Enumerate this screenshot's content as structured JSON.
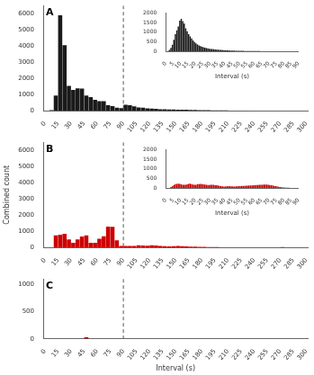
{
  "chart_data": [
    {
      "type": "histogram",
      "title": "A",
      "color": "#1a1a1a",
      "bins": [
        0,
        5,
        10,
        15,
        20,
        25,
        30,
        35,
        40,
        45,
        50,
        55,
        60,
        65,
        70,
        75,
        80,
        85,
        90,
        95,
        100,
        105,
        110,
        115,
        120,
        125,
        130,
        135,
        140,
        145,
        150,
        155,
        160,
        165,
        170,
        175,
        180,
        185,
        190,
        195,
        200,
        205,
        210,
        215,
        220,
        225,
        230,
        235,
        240,
        245,
        250,
        255,
        260,
        265,
        270,
        275,
        280,
        285,
        290,
        295,
        300
      ],
      "values": [
        10,
        50,
        950,
        5900,
        4050,
        1550,
        1300,
        1400,
        1380,
        950,
        850,
        680,
        600,
        600,
        350,
        300,
        200,
        170,
        380,
        350,
        290,
        220,
        200,
        160,
        140,
        130,
        110,
        100,
        90,
        85,
        80,
        75,
        70,
        65,
        55,
        50,
        50,
        45,
        40,
        35,
        35,
        30,
        25,
        20,
        20,
        15,
        15,
        12,
        10,
        8,
        7,
        5,
        5,
        4,
        3,
        3,
        2,
        2,
        1,
        1
      ],
      "xlim": [
        -2,
        302
      ],
      "xticks": [
        0,
        15,
        30,
        45,
        60,
        75,
        90,
        105,
        120,
        135,
        150,
        165,
        180,
        195,
        210,
        225,
        240,
        255,
        270,
        285,
        300
      ],
      "ylim": [
        0,
        6500
      ],
      "yticks": [
        0,
        1000,
        2000,
        3000,
        4000,
        5000,
        6000
      ],
      "grid": false,
      "reference_lines": [
        {
          "x": 90,
          "line_style": "dashed",
          "color": "#555555"
        }
      ],
      "inset": {
        "type": "histogram",
        "xlabel": "Interval (s)",
        "color": "#1a1a1a",
        "bins": [
          0,
          1,
          2,
          3,
          4,
          5,
          6,
          7,
          8,
          9,
          10,
          11,
          12,
          13,
          14,
          15,
          16,
          17,
          18,
          19,
          20,
          21,
          22,
          23,
          24,
          25,
          26,
          27,
          28,
          29,
          30,
          31,
          32,
          33,
          34,
          35,
          36,
          37,
          38,
          39,
          40,
          41,
          42,
          43,
          44,
          45,
          46,
          47,
          48,
          49,
          50,
          51,
          52,
          53,
          54,
          55,
          56,
          57,
          58,
          59,
          60,
          61,
          62,
          63,
          64,
          65,
          66,
          67,
          68,
          69,
          70,
          71,
          72,
          73,
          74,
          75,
          76,
          77,
          78,
          79,
          80,
          81,
          82,
          83,
          84,
          85,
          86,
          87,
          88,
          89,
          90
        ],
        "values": [
          5,
          20,
          80,
          180,
          350,
          600,
          900,
          1100,
          1300,
          1600,
          1700,
          1580,
          1450,
          1200,
          1050,
          900,
          780,
          670,
          570,
          490,
          420,
          360,
          310,
          270,
          240,
          215,
          190,
          170,
          155,
          140,
          128,
          118,
          108,
          100,
          92,
          85,
          78,
          72,
          66,
          61,
          56,
          52,
          48,
          44,
          41,
          38,
          35,
          33,
          31,
          29,
          27,
          25,
          23,
          22,
          20,
          19,
          18,
          17,
          16,
          15,
          14,
          13,
          12,
          11,
          10,
          10,
          9,
          9,
          8,
          8,
          7,
          7,
          6,
          6,
          5,
          5,
          5,
          4,
          4,
          4,
          3,
          3,
          3,
          2,
          2,
          2,
          2,
          1,
          1,
          1
        ],
        "xlim": [
          0,
          90
        ],
        "xticks": [
          0,
          5,
          10,
          15,
          20,
          25,
          30,
          35,
          40,
          45,
          50,
          55,
          60,
          65,
          70,
          75,
          80,
          85,
          90
        ],
        "ylim": [
          0,
          2000
        ],
        "yticks": [
          0,
          500,
          1000,
          1500,
          2000
        ],
        "grid": false
      }
    },
    {
      "type": "histogram",
      "title": "B",
      "ylabel": "Combined count",
      "color": "#cc0000",
      "bins": [
        0,
        5,
        10,
        15,
        20,
        25,
        30,
        35,
        40,
        45,
        50,
        55,
        60,
        65,
        70,
        75,
        80,
        85,
        90,
        95,
        100,
        105,
        110,
        115,
        120,
        125,
        130,
        135,
        140,
        145,
        150,
        155,
        160,
        165,
        170,
        175,
        180,
        185,
        190,
        195,
        200,
        205,
        210,
        215,
        220,
        225,
        230,
        235,
        240,
        245,
        250,
        255,
        260,
        265,
        270,
        275,
        280,
        285,
        290,
        295,
        300
      ],
      "values": [
        5,
        10,
        750,
        800,
        850,
        500,
        300,
        500,
        680,
        750,
        300,
        300,
        550,
        700,
        1300,
        1280,
        450,
        100,
        100,
        110,
        100,
        150,
        130,
        120,
        140,
        130,
        100,
        90,
        80,
        90,
        100,
        90,
        70,
        60,
        55,
        50,
        45,
        40,
        35,
        30,
        25,
        25,
        20,
        15,
        15,
        10,
        10,
        8,
        5,
        5,
        3,
        3,
        2,
        2,
        30,
        2,
        2,
        1,
        1,
        1
      ],
      "xlim": [
        -2,
        302
      ],
      "xticks": [
        0,
        15,
        30,
        45,
        60,
        75,
        90,
        105,
        120,
        135,
        150,
        165,
        180,
        195,
        210,
        225,
        240,
        255,
        270,
        285,
        300
      ],
      "ylim": [
        0,
        6500
      ],
      "yticks": [
        0,
        1000,
        2000,
        3000,
        4000,
        5000,
        6000
      ],
      "grid": false,
      "reference_lines": [
        {
          "x": 90,
          "line_style": "dashed",
          "color": "#555555"
        }
      ],
      "inset": {
        "type": "histogram",
        "xlabel": "Interval (s)",
        "color": "#cc0000",
        "bins": [
          0,
          1,
          2,
          3,
          4,
          5,
          6,
          7,
          8,
          9,
          10,
          11,
          12,
          13,
          14,
          15,
          16,
          17,
          18,
          19,
          20,
          21,
          22,
          23,
          24,
          25,
          26,
          27,
          28,
          29,
          30,
          31,
          32,
          33,
          34,
          35,
          36,
          37,
          38,
          39,
          40,
          41,
          42,
          43,
          44,
          45,
          46,
          47,
          48,
          49,
          50,
          51,
          52,
          53,
          54,
          55,
          56,
          57,
          58,
          59,
          60,
          61,
          62,
          63,
          64,
          65,
          66,
          67,
          68,
          69,
          70,
          71,
          72,
          73,
          74,
          75,
          76,
          77,
          78,
          79,
          80,
          81,
          82,
          83,
          84,
          85,
          86,
          87,
          88,
          89,
          90
        ],
        "values": [
          2,
          5,
          10,
          50,
          100,
          160,
          200,
          220,
          230,
          215,
          195,
          175,
          165,
          175,
          195,
          215,
          230,
          210,
          185,
          170,
          175,
          200,
          210,
          215,
          205,
          195,
          182,
          165,
          155,
          158,
          168,
          175,
          165,
          152,
          142,
          132,
          115,
          95,
          82,
          78,
          82,
          92,
          102,
          97,
          88,
          82,
          78,
          83,
          93,
          98,
          100,
          105,
          110,
          115,
          120,
          125,
          130,
          135,
          140,
          145,
          150,
          155,
          160,
          165,
          170,
          175,
          180,
          185,
          185,
          175,
          162,
          148,
          130,
          112,
          97,
          82,
          67,
          52,
          42,
          32,
          25,
          20,
          16,
          12,
          10,
          8,
          6,
          5,
          4,
          3
        ],
        "xlim": [
          0,
          90
        ],
        "xticks": [
          0,
          5,
          10,
          15,
          20,
          25,
          30,
          35,
          40,
          45,
          50,
          55,
          60,
          65,
          70,
          75,
          80,
          85,
          90
        ],
        "ylim": [
          0,
          2000
        ],
        "yticks": [
          0,
          500,
          1000,
          1500,
          2000
        ],
        "grid": false
      }
    },
    {
      "type": "histogram",
      "title": "C",
      "xlabel": "Interval (s)",
      "color": "#cc0000",
      "bins": [
        0,
        5,
        10,
        15,
        20,
        25,
        30,
        35,
        40,
        45,
        50,
        55,
        60,
        65,
        70,
        75,
        80,
        85,
        90,
        95,
        100,
        105,
        110,
        115,
        120,
        125,
        130,
        135,
        140,
        145,
        150,
        155,
        160,
        165,
        170,
        175,
        180,
        185,
        190,
        195,
        200,
        205,
        210,
        215,
        220,
        225,
        230,
        235,
        240,
        245,
        250,
        255,
        260,
        265,
        270,
        275,
        280,
        285,
        290,
        295,
        300
      ],
      "values": [
        0,
        0,
        0,
        0,
        0,
        0,
        0,
        0,
        0,
        30,
        0,
        0,
        0,
        0,
        0,
        0,
        0,
        0,
        0,
        0,
        0,
        0,
        0,
        0,
        0,
        0,
        0,
        0,
        0,
        0,
        0,
        0,
        0,
        0,
        0,
        0,
        0,
        0,
        0,
        0,
        0,
        0,
        0,
        0,
        0,
        0,
        0,
        0,
        0,
        0,
        0,
        0,
        0,
        0,
        0,
        0,
        0,
        0,
        0,
        0
      ],
      "xlim": [
        -2,
        302
      ],
      "xticks": [
        0,
        15,
        30,
        45,
        60,
        75,
        90,
        105,
        120,
        135,
        150,
        165,
        180,
        195,
        210,
        225,
        240,
        255,
        270,
        285,
        300
      ],
      "ylim": [
        0,
        1100
      ],
      "yticks": [
        0,
        500,
        1000
      ],
      "grid": false,
      "reference_lines": [
        {
          "x": 90,
          "line_style": "dashed",
          "color": "#555555"
        }
      ]
    }
  ]
}
